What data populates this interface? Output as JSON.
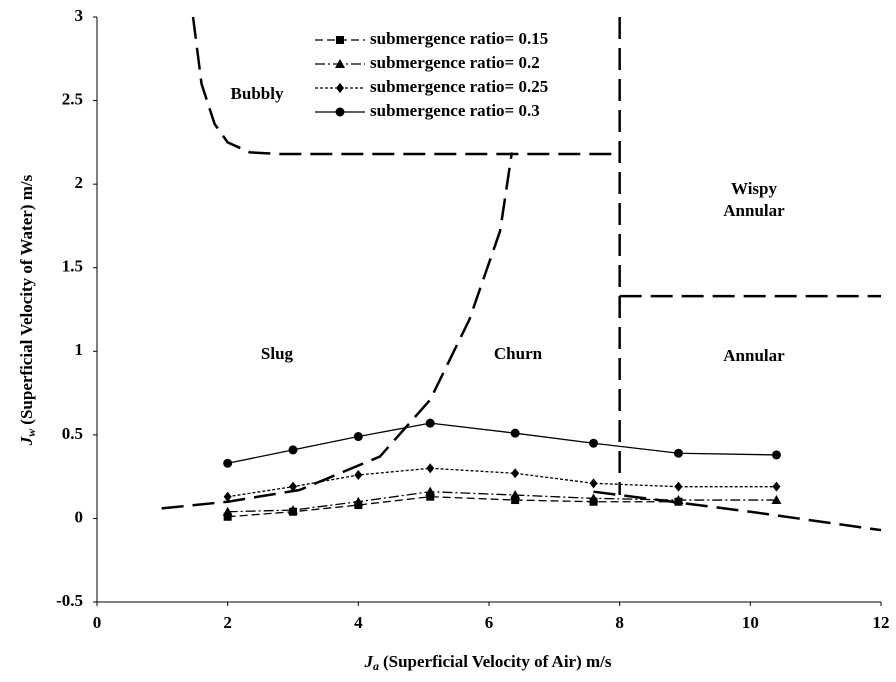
{
  "chart_data": {
    "type": "line",
    "x_label": {
      "symbol": "J",
      "subscript": "a",
      "text": "(Superficial Velocity of Air) m/s"
    },
    "y_label": {
      "symbol": "J",
      "subscript": "w",
      "text": "(Superficial Velocity of Water) m/s"
    },
    "xlim": [
      0,
      12
    ],
    "xticks": [
      0,
      2,
      4,
      6,
      8,
      10,
      12
    ],
    "ylim": [
      -0.5,
      3
    ],
    "yticks": [
      -0.5,
      0,
      0.5,
      1,
      1.5,
      2,
      2.5,
      3
    ],
    "grid": false,
    "series": [
      {
        "name": "submergence ratio= 0.15",
        "color": "#000000",
        "marker": "square",
        "dash": "dashed",
        "x": [
          2,
          3,
          4,
          5.1,
          6.4,
          7.6,
          8.9
        ],
        "values": [
          0.01,
          0.04,
          0.08,
          0.13,
          0.11,
          0.1,
          0.1
        ]
      },
      {
        "name": "submergence ratio= 0.2",
        "color": "#000000",
        "marker": "triangle",
        "dash": "dashdot",
        "x": [
          2,
          3,
          4,
          5.1,
          6.4,
          7.6,
          8.9,
          10.4
        ],
        "values": [
          0.04,
          0.05,
          0.1,
          0.16,
          0.14,
          0.12,
          0.11,
          0.11
        ]
      },
      {
        "name": "submergence ratio= 0.25",
        "color": "#000000",
        "marker": "diamond",
        "dash": "dotted",
        "x": [
          2,
          3,
          4,
          5.1,
          6.4,
          7.6,
          8.9,
          10.4
        ],
        "values": [
          0.13,
          0.19,
          0.26,
          0.3,
          0.27,
          0.21,
          0.19,
          0.19
        ]
      },
      {
        "name": "submergence ratio= 0.3",
        "color": "#000000",
        "marker": "circle",
        "dash": "solid",
        "x": [
          2,
          3,
          4,
          5.1,
          6.4,
          7.6,
          8.9,
          10.4
        ],
        "values": [
          0.33,
          0.41,
          0.49,
          0.57,
          0.51,
          0.45,
          0.39,
          0.38
        ]
      }
    ],
    "boundaries": [
      {
        "x": [
          1.47,
          1.6,
          1.8,
          2.0,
          2.34,
          2.8,
          8
        ],
        "values": [
          3,
          2.6,
          2.36,
          2.25,
          2.19,
          2.18,
          2.18
        ]
      },
      {
        "x": [
          8,
          8
        ],
        "values": [
          3,
          0.14
        ]
      },
      {
        "x": [
          8,
          12
        ],
        "values": [
          1.33,
          1.33
        ]
      },
      {
        "x": [
          0.99,
          2,
          3.1,
          4.33,
          5.1,
          5.7,
          6.17,
          6.35
        ],
        "values": [
          0.06,
          0.1,
          0.17,
          0.37,
          0.71,
          1.19,
          1.72,
          2.19
        ]
      },
      {
        "x": [
          7.6,
          8,
          10,
          12
        ],
        "values": [
          0.16,
          0.14,
          0.04,
          -0.07
        ]
      }
    ],
    "regions": [
      "Bubbly",
      "Slug",
      "Churn",
      "Wispy",
      "Annular",
      "Annular"
    ]
  }
}
